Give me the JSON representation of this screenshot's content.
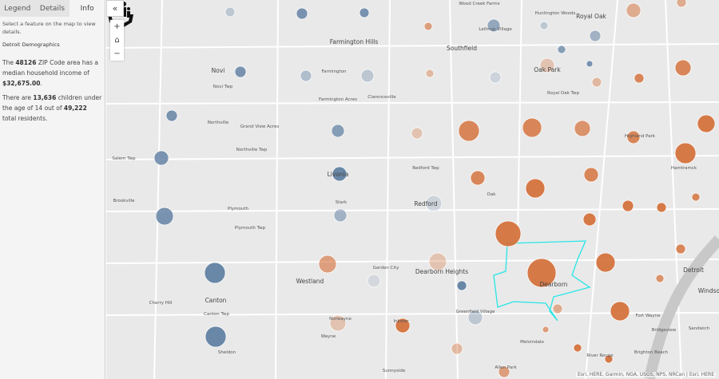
{
  "panel": {
    "tabs": [
      {
        "label": "Legend"
      },
      {
        "label": "Details"
      },
      {
        "label": "Info",
        "active": true
      }
    ],
    "prompt": "Select a feature on the map to view details.",
    "layer_title": "Detroit Demographics",
    "info1": {
      "pre": "The ",
      "zip": "48126",
      "mid": " ZIP Code area has a median household income of ",
      "income": "$32,675.00",
      "post": "."
    },
    "info2": {
      "pre": "There are ",
      "children": "13,636",
      "mid": " children under the age of 14 out of ",
      "total": "49,222",
      "post": " total residents."
    }
  },
  "controls": {
    "collapse": "«",
    "zoom_in": "+",
    "home": "⌂",
    "zoom_out": "−"
  },
  "attribution": "Esri, HERE, Garmin, NGA, USGS, NPS, NRCan | Esri, HERE",
  "colors": {
    "blue": "#5b7ca0",
    "orange": "#d36d35",
    "highlight": "#27e6e6"
  },
  "places": [
    "Wood Creek Farms",
    "Lathrup Village",
    "Huntington Woods",
    "Royal Oak",
    "Farmington Hills",
    "Southfield",
    "Novi",
    "Farmington",
    "Oak Park",
    "Novi Twp",
    "Royal Oak Twp",
    "Farmington Acres",
    "Clarenceville",
    "Northville",
    "Grand View Acres",
    "Northville Twp",
    "Salem Twp",
    "Highland Park",
    "Hamtramck",
    "Livonia",
    "Redford Twp",
    "Oak",
    "Redford",
    "Brookville",
    "Plymouth",
    "Stark",
    "Plymouth Twp",
    "Garden City",
    "Westland",
    "Dearborn Heights",
    "Dearborn",
    "Detroit",
    "Canton",
    "Cherry Hill",
    "Canton Twp",
    "Greenfield Village",
    "Norwayne",
    "Inkster",
    "Wayne",
    "Sheldon",
    "Melvindale",
    "Fort Wayne",
    "Bridgeview",
    "River Rouge",
    "Brighton Beach",
    "Sandwich",
    "Allen Park",
    "Sunnyside",
    "Windsor"
  ]
}
